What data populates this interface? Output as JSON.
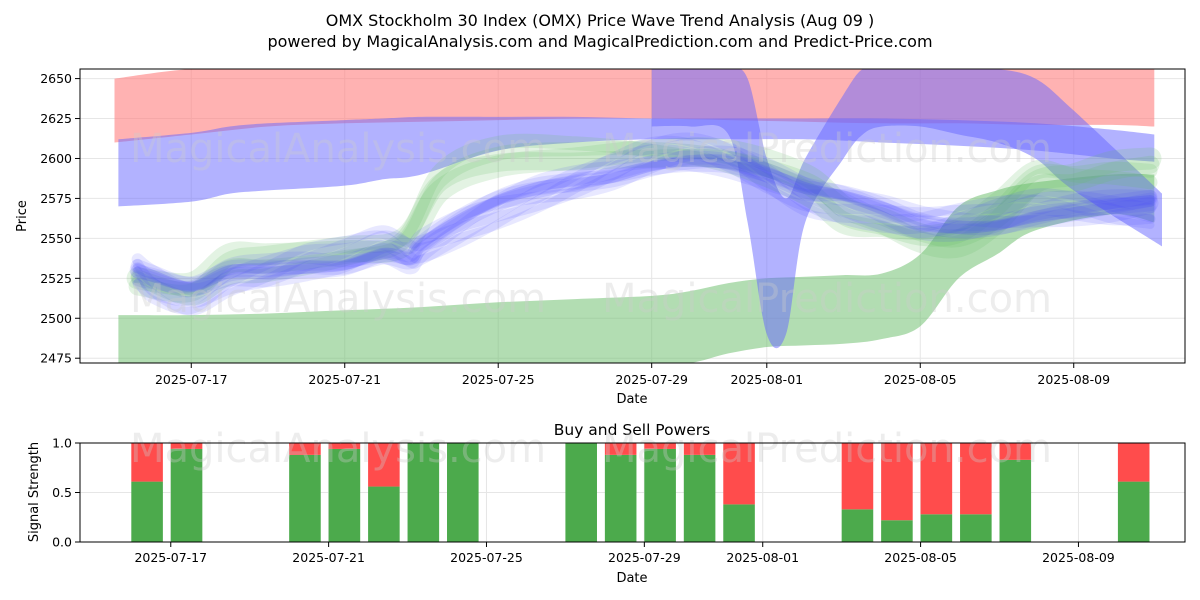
{
  "title": "OMX Stockholm 30 Index (OMX) Price Wave Trend Analysis (Aug 09 )",
  "subtitle": "powered by MagicalAnalysis.com and MagicalPrediction.com and Predict-Price.com",
  "watermarks": [
    "MagicalAnalysis.com",
    "MagicalPrediction.com"
  ],
  "colors": {
    "red_band": "#ff7f7f",
    "blue_band": "#6666ff",
    "green_band": "#66bb66",
    "buy": "#4caa4c",
    "sell": "#ff4c4c",
    "grid": "#e6e6e6"
  },
  "chart_data": [
    {
      "type": "area",
      "title": "OMX Stockholm 30 Index (OMX) Price Wave Trend Analysis (Aug 09 )",
      "xlabel": "Date",
      "ylabel": "Price",
      "ylim": [
        2472,
        2656
      ],
      "xlim_days": [
        -2.9,
        25.9
      ],
      "x_origin": "2025-07-17",
      "xticks": [
        {
          "day": 0,
          "label": "2025-07-17"
        },
        {
          "day": 4,
          "label": "2025-07-21"
        },
        {
          "day": 8,
          "label": "2025-07-25"
        },
        {
          "day": 12,
          "label": "2025-07-29"
        },
        {
          "day": 15,
          "label": "2025-08-01"
        },
        {
          "day": 19,
          "label": "2025-08-05"
        },
        {
          "day": 23,
          "label": "2025-08-09"
        }
      ],
      "yticks": [
        2475,
        2500,
        2525,
        2550,
        2575,
        2600,
        2625,
        2650
      ],
      "grid": true,
      "bands": [
        {
          "name": "red-upper-band",
          "color": "#ff7f7f",
          "opacity": 0.6,
          "x": [
            -2,
            0,
            2,
            4,
            6,
            8,
            10,
            12,
            14,
            16,
            18,
            20,
            22,
            24,
            25.1
          ],
          "upper": [
            2650,
            2656,
            2656,
            2656,
            2656,
            2656,
            2656,
            2656,
            2656,
            2656,
            2656,
            2656,
            2656,
            2656,
            2656
          ],
          "lower": [
            2610,
            2615,
            2620,
            2622,
            2623,
            2624,
            2625,
            2625,
            2624,
            2623,
            2622,
            2622,
            2621,
            2621,
            2620
          ]
        },
        {
          "name": "green-lower-band",
          "color": "#66bb66",
          "opacity": 0.5,
          "x": [
            -1.9,
            0,
            2,
            4,
            6,
            8,
            10,
            12,
            13,
            14,
            15,
            16,
            17,
            18,
            19,
            20,
            21,
            22,
            24,
            25.1
          ],
          "upper": [
            2502,
            2502,
            2503,
            2505,
            2507,
            2510,
            2512,
            2514,
            2517,
            2522,
            2525,
            2526,
            2527,
            2528,
            2540,
            2570,
            2580,
            2585,
            2590,
            2590
          ],
          "lower": [
            2472,
            2472,
            2472,
            2472,
            2472,
            2472,
            2472,
            2472,
            2472,
            2478,
            2482,
            2483,
            2484,
            2487,
            2495,
            2525,
            2540,
            2555,
            2565,
            2560
          ]
        },
        {
          "name": "purple-spike-band",
          "color": "#6666ff",
          "opacity": 0.5,
          "x": [
            12,
            13,
            14,
            14.5,
            15,
            15.5,
            16,
            17,
            17.5,
            18,
            19,
            20,
            21,
            22,
            23,
            25.3
          ],
          "upper": [
            2656,
            2656,
            2656,
            2650,
            2600,
            2575,
            2600,
            2640,
            2656,
            2656,
            2656,
            2656,
            2656,
            2650,
            2630,
            2578
          ],
          "lower": [
            2620,
            2620,
            2615,
            2560,
            2490,
            2490,
            2560,
            2600,
            2615,
            2620,
            2620,
            2615,
            2610,
            2600,
            2580,
            2545
          ]
        },
        {
          "name": "blue-upper-band",
          "color": "#6666ff",
          "opacity": 0.5,
          "x": [
            -1.9,
            0,
            1,
            2,
            4,
            5,
            6,
            8,
            10,
            12,
            14,
            16,
            18,
            20,
            22,
            24,
            25.1
          ],
          "upper": [
            2612,
            2616,
            2620,
            2622,
            2624,
            2625,
            2626,
            2626,
            2626,
            2625,
            2625,
            2625,
            2625,
            2624,
            2622,
            2618,
            2615
          ],
          "lower": [
            2570,
            2573,
            2578,
            2580,
            2583,
            2587,
            2590,
            2605,
            2610,
            2612,
            2612,
            2612,
            2610,
            2608,
            2605,
            2600,
            2598
          ]
        }
      ],
      "wave_lines": {
        "color": "#4040ff",
        "opacity": 0.12,
        "x": [
          -1.4,
          -1,
          0,
          1,
          2,
          3,
          4,
          5,
          5.7,
          6,
          7,
          8,
          9,
          10,
          11,
          12,
          13,
          14,
          15,
          16,
          17,
          18,
          19,
          20,
          21,
          22,
          23,
          24,
          25
        ],
        "center": [
          2530,
          2525,
          2518,
          2528,
          2530,
          2533,
          2535,
          2542,
          2538,
          2545,
          2560,
          2572,
          2580,
          2585,
          2590,
          2597,
          2600,
          2598,
          2590,
          2580,
          2575,
          2568,
          2560,
          2558,
          2560,
          2565,
          2568,
          2570,
          2572
        ],
        "offsets": [
          -14,
          -10,
          -7,
          -4,
          -2,
          0,
          2,
          4,
          7,
          10,
          14
        ],
        "widths": [
          8,
          10,
          12,
          14,
          10,
          16,
          10,
          14,
          12,
          10,
          8
        ]
      },
      "green_wave_lines": {
        "color": "#66bb66",
        "opacity": 0.18,
        "x": [
          -1.4,
          0,
          1,
          2,
          4,
          5.5,
          6.5,
          8,
          10,
          12,
          14,
          16,
          17,
          18,
          19,
          20,
          21,
          22,
          23,
          24,
          25
        ],
        "center": [
          2525,
          2522,
          2540,
          2540,
          2542,
          2545,
          2580,
          2595,
          2600,
          2605,
          2605,
          2590,
          2570,
          2560,
          2548,
          2545,
          2560,
          2585,
          2590,
          2598,
          2600
        ],
        "offsets": [
          -15,
          -6,
          0,
          8
        ],
        "widths": [
          14,
          18,
          22,
          14
        ]
      }
    },
    {
      "type": "bar",
      "title": "Buy and Sell Powers",
      "xlabel": "Date",
      "ylabel": "Signal Strength",
      "ylim": [
        0,
        1.0
      ],
      "xlim_days": [
        -2.3,
        25.7
      ],
      "x_origin": "2025-07-17",
      "xticks": [
        {
          "day": 0,
          "label": "2025-07-17"
        },
        {
          "day": 4,
          "label": "2025-07-21"
        },
        {
          "day": 8,
          "label": "2025-07-25"
        },
        {
          "day": 12,
          "label": "2025-07-29"
        },
        {
          "day": 15,
          "label": "2025-08-01"
        },
        {
          "day": 19,
          "label": "2025-08-05"
        },
        {
          "day": 23,
          "label": "2025-08-09"
        }
      ],
      "yticks": [
        {
          "v": 0.0,
          "label": "0.0"
        },
        {
          "v": 0.5,
          "label": "0.5"
        },
        {
          "v": 1.0,
          "label": "1.0"
        }
      ],
      "bar_width_days": 0.8,
      "series": [
        {
          "name": "Buy",
          "color": "#4caa4c"
        },
        {
          "name": "Sell",
          "color": "#ff4c4c"
        }
      ],
      "bars": [
        {
          "day": -0.6,
          "buy": 0.61
        },
        {
          "day": 0.4,
          "buy": 0.94
        },
        {
          "day": 3.4,
          "buy": 0.88
        },
        {
          "day": 4.4,
          "buy": 0.94
        },
        {
          "day": 5.4,
          "buy": 0.56
        },
        {
          "day": 6.4,
          "buy": 1.0
        },
        {
          "day": 7.4,
          "buy": 1.0
        },
        {
          "day": 10.4,
          "buy": 1.0
        },
        {
          "day": 11.4,
          "buy": 0.88
        },
        {
          "day": 12.4,
          "buy": 0.94
        },
        {
          "day": 13.4,
          "buy": 0.88
        },
        {
          "day": 14.4,
          "buy": 0.38
        },
        {
          "day": 17.4,
          "buy": 0.33
        },
        {
          "day": 18.4,
          "buy": 0.22
        },
        {
          "day": 19.4,
          "buy": 0.28
        },
        {
          "day": 20.4,
          "buy": 0.28
        },
        {
          "day": 21.4,
          "buy": 0.83
        },
        {
          "day": 24.4,
          "buy": 0.61
        }
      ]
    }
  ]
}
